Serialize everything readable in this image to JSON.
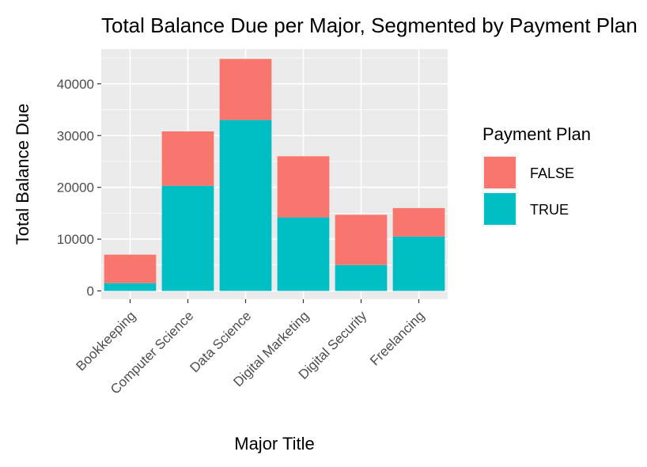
{
  "chart_data": {
    "type": "bar",
    "stacked": true,
    "title": "Total Balance Due per Major, Segmented by Payment Plan",
    "xlabel": "Major Title",
    "ylabel": "Total Balance Due",
    "categories": [
      "Bookkeeping",
      "Computer Science",
      "Data Science",
      "Digital Marketing",
      "Digital Security",
      "Freelancing"
    ],
    "series": [
      {
        "name": "TRUE",
        "color": "#00BFC4",
        "values": [
          1500,
          20300,
          33000,
          14200,
          5000,
          10500
        ]
      },
      {
        "name": "FALSE",
        "color": "#F8766D",
        "values": [
          5500,
          10500,
          11800,
          11800,
          9700,
          5500
        ]
      }
    ],
    "ylim": [
      -1600,
      46700
    ],
    "yticks": [
      0,
      10000,
      20000,
      30000,
      40000
    ],
    "ytick_labels": [
      "0",
      "10000",
      "20000",
      "30000",
      "40000"
    ],
    "grid": true,
    "panel_background": "#EBEBEB",
    "legend": {
      "title": "Payment Plan",
      "position": "right",
      "entries": [
        {
          "label": "FALSE",
          "color": "#F8766D"
        },
        {
          "label": "TRUE",
          "color": "#00BFC4"
        }
      ]
    }
  }
}
